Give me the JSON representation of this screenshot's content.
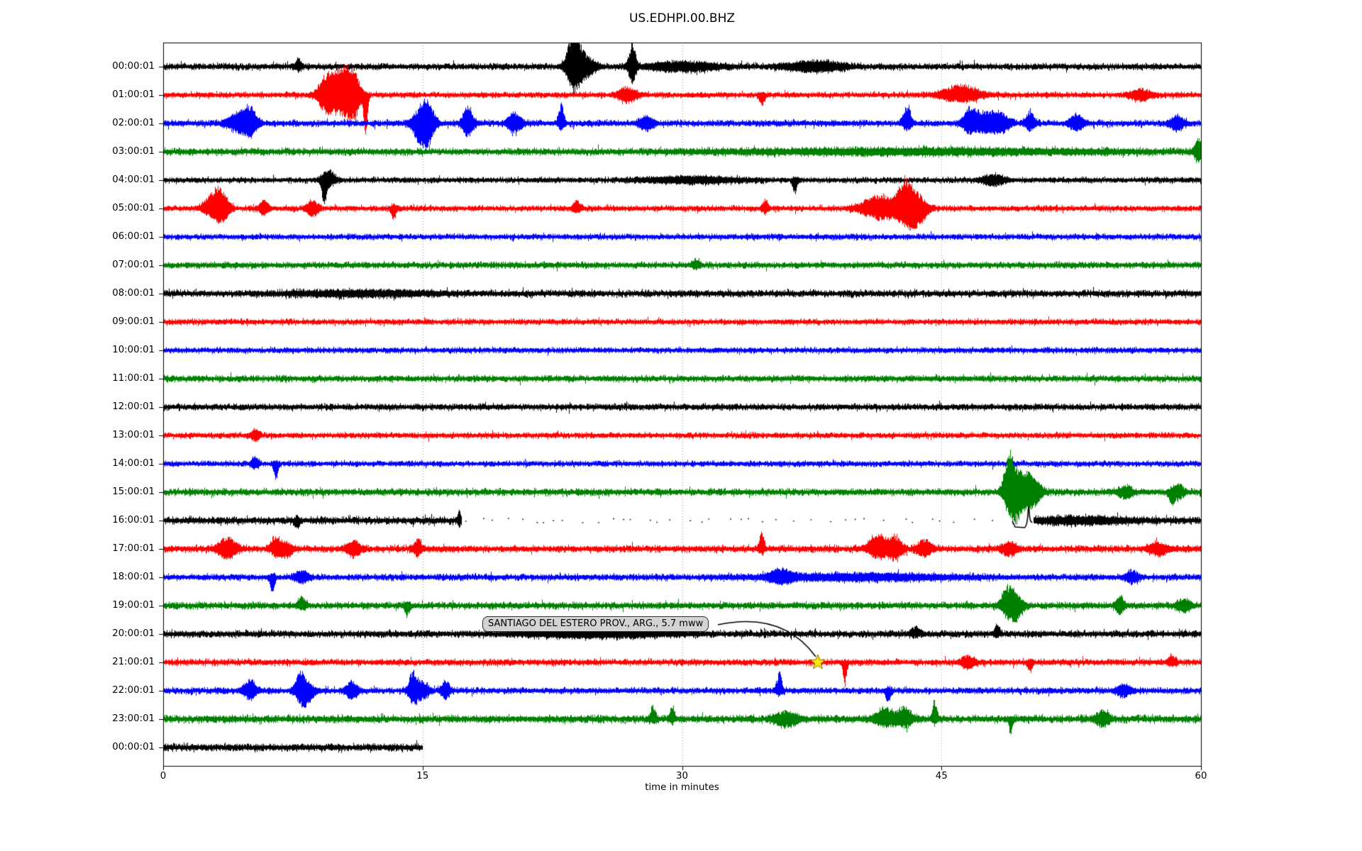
{
  "title": "US.EDHPI.00.BHZ",
  "x_axis": {
    "label": "time in minutes",
    "ticks": [
      "0",
      "15",
      "30",
      "45",
      "60"
    ],
    "range_minutes": [
      0,
      60
    ]
  },
  "annotation": {
    "text": "SANTIAGO DEL ESTERO PROV., ARG., 5.7 mww",
    "target_row": 21,
    "target_minute": 37.85,
    "marker": "star",
    "marker_fill": "#ffe600",
    "marker_edge": "#857100",
    "box_fill": "#d3d3d3",
    "box_edge": "#2e2e2e"
  },
  "colors": {
    "background": "#ffffff",
    "frame": "#000000",
    "grid": "#9a9a9a",
    "trace_cycle": [
      "#000000",
      "#ff0000",
      "#0000ff",
      "#008000"
    ]
  },
  "chart_data": {
    "type": "line",
    "subtype": "seismogram-dayplot",
    "title": "US.EDHPI.00.BHZ",
    "xlabel": "time in minutes",
    "x_ticks": [
      0,
      15,
      30,
      45,
      60
    ],
    "x_range_minutes": [
      0,
      60
    ],
    "grid": "vertical-dotted-at-15-30-45",
    "events_format": "[minute, amplitude_px, half_width_min, skew(-1=down..+1=up)]",
    "rows": [
      {
        "label": "00:00:01",
        "color": "#000000",
        "amp": 5.5,
        "segments": [
          [
            0,
            60
          ]
        ],
        "events": [
          [
            7.8,
            10,
            0.15,
            0.5
          ],
          [
            23.7,
            46,
            0.28,
            0.45
          ],
          [
            24.2,
            18,
            0.5,
            0
          ],
          [
            27.1,
            34,
            0.16,
            0.35
          ],
          [
            30.0,
            6,
            1.5,
            0
          ],
          [
            37.7,
            7,
            1.2,
            0
          ]
        ]
      },
      {
        "label": "01:00:01",
        "color": "#ff0000",
        "amp": 5,
        "segments": [
          [
            0,
            60
          ]
        ],
        "events": [
          [
            9.4,
            26,
            0.35,
            0.1
          ],
          [
            10.3,
            40,
            0.45,
            0.25
          ],
          [
            11.0,
            30,
            0.3,
            0
          ],
          [
            11.7,
            58,
            0.1,
            -1
          ],
          [
            26.8,
            10,
            0.4,
            0
          ],
          [
            34.6,
            16,
            0.12,
            -0.85
          ],
          [
            46.1,
            13,
            0.8,
            0.3
          ],
          [
            56.5,
            7,
            0.5,
            0
          ]
        ]
      },
      {
        "label": "02:00:01",
        "color": "#0000ff",
        "amp": 5.5,
        "segments": [
          [
            0,
            60
          ]
        ],
        "events": [
          [
            4.4,
            15,
            0.5,
            0.2
          ],
          [
            5.0,
            18,
            0.3,
            0.3
          ],
          [
            14.9,
            28,
            0.35,
            -0.3
          ],
          [
            15.3,
            22,
            0.3,
            0.2
          ],
          [
            17.6,
            22,
            0.25,
            0.2
          ],
          [
            20.3,
            16,
            0.3,
            0.2
          ],
          [
            23.0,
            28,
            0.13,
            0.7
          ],
          [
            27.9,
            10,
            0.3,
            0
          ],
          [
            43.0,
            28,
            0.18,
            0.7
          ],
          [
            46.6,
            20,
            0.3,
            0.4
          ],
          [
            47.5,
            15,
            0.5,
            0.2
          ],
          [
            48.4,
            12,
            0.4,
            0
          ],
          [
            50.1,
            17,
            0.22,
            0.5
          ],
          [
            52.8,
            13,
            0.3,
            0.3
          ],
          [
            58.6,
            10,
            0.3,
            0
          ]
        ]
      },
      {
        "label": "03:00:01",
        "color": "#008000",
        "amp": 6,
        "segments": [
          [
            0,
            60
          ]
        ],
        "events": [
          [
            44.0,
            3,
            8,
            0
          ],
          [
            59.85,
            15,
            0.18,
            0
          ]
        ]
      },
      {
        "label": "04:00:01",
        "color": "#000000",
        "amp": 5,
        "segments": [
          [
            0,
            60
          ]
        ],
        "events": [
          [
            9.3,
            30,
            0.13,
            -0.85
          ],
          [
            9.6,
            12,
            0.3,
            0.5
          ],
          [
            30.5,
            4,
            2,
            0
          ],
          [
            36.5,
            22,
            0.11,
            -0.9
          ],
          [
            48.0,
            7,
            0.5,
            0
          ]
        ]
      },
      {
        "label": "05:00:01",
        "color": "#ff0000",
        "amp": 5,
        "segments": [
          [
            0,
            60
          ]
        ],
        "events": [
          [
            2.9,
            23,
            0.4,
            0.45
          ],
          [
            3.4,
            16,
            0.3,
            0
          ],
          [
            5.8,
            11,
            0.2,
            0.3
          ],
          [
            8.6,
            11,
            0.25,
            0
          ],
          [
            13.3,
            13,
            0.13,
            -0.7
          ],
          [
            23.9,
            10,
            0.18,
            0.5
          ],
          [
            34.8,
            12,
            0.13,
            0.5
          ],
          [
            41.5,
            18,
            0.8,
            0.1
          ],
          [
            42.9,
            40,
            0.35,
            0.5
          ],
          [
            43.6,
            24,
            0.4,
            -0.3
          ]
        ]
      },
      {
        "label": "06:00:01",
        "color": "#0000ff",
        "amp": 5,
        "segments": [
          [
            0,
            60
          ]
        ],
        "events": []
      },
      {
        "label": "07:00:01",
        "color": "#008000",
        "amp": 5.5,
        "segments": [
          [
            0,
            60
          ]
        ],
        "events": [
          [
            30.8,
            8,
            0.18,
            0.6
          ]
        ]
      },
      {
        "label": "08:00:01",
        "color": "#000000",
        "amp": 6,
        "segments": [
          [
            0,
            60
          ]
        ],
        "events": [
          [
            11.5,
            3,
            3,
            0
          ]
        ]
      },
      {
        "label": "09:00:01",
        "color": "#ff0000",
        "amp": 5,
        "segments": [
          [
            0,
            60
          ]
        ],
        "events": []
      },
      {
        "label": "10:00:01",
        "color": "#0000ff",
        "amp": 5,
        "segments": [
          [
            0,
            60
          ]
        ],
        "events": []
      },
      {
        "label": "11:00:01",
        "color": "#008000",
        "amp": 5.5,
        "segments": [
          [
            0,
            60
          ]
        ],
        "events": []
      },
      {
        "label": "12:00:01",
        "color": "#000000",
        "amp": 5.5,
        "segments": [
          [
            0,
            60
          ]
        ],
        "events": []
      },
      {
        "label": "13:00:01",
        "color": "#ff0000",
        "amp": 5,
        "segments": [
          [
            0,
            60
          ]
        ],
        "events": [
          [
            5.3,
            7,
            0.2,
            0
          ]
        ]
      },
      {
        "label": "14:00:01",
        "color": "#0000ff",
        "amp": 5,
        "segments": [
          [
            0,
            60
          ]
        ],
        "events": [
          [
            5.3,
            9,
            0.18,
            0.3
          ],
          [
            6.5,
            21,
            0.11,
            -0.9
          ]
        ]
      },
      {
        "label": "15:00:01",
        "color": "#008000",
        "amp": 6,
        "segments": [
          [
            0,
            60
          ]
        ],
        "events": [
          [
            48.9,
            54,
            0.25,
            0.6
          ],
          [
            49.3,
            36,
            0.3,
            -0.4
          ],
          [
            49.9,
            24,
            0.3,
            0.2
          ],
          [
            50.4,
            14,
            0.3,
            0
          ],
          [
            55.6,
            8,
            0.3,
            0
          ],
          [
            58.3,
            19,
            0.13,
            -0.8
          ],
          [
            58.7,
            12,
            0.2,
            0.2
          ]
        ]
      },
      {
        "label": "16:00:01",
        "color": "#000000",
        "amp": 6.5,
        "segments": [
          [
            0,
            17.25
          ],
          [
            50.3,
            60
          ]
        ],
        "events": [
          [
            7.7,
            12,
            0.11,
            -0.8
          ],
          [
            17.1,
            13,
            0.09,
            0.5
          ],
          [
            53.0,
            4,
            2,
            0
          ]
        ],
        "gap_dots": [
          17.5,
          48.3
        ],
        "cal_pulse_minute": 50.0
      },
      {
        "label": "17:00:01",
        "color": "#ff0000",
        "amp": 6,
        "segments": [
          [
            0,
            60
          ]
        ],
        "events": [
          [
            3.7,
            15,
            0.4,
            0.1
          ],
          [
            6.5,
            17,
            0.22,
            0.5
          ],
          [
            7.1,
            11,
            0.3,
            -0.4
          ],
          [
            11.0,
            10,
            0.3,
            0
          ],
          [
            14.7,
            11,
            0.18,
            0.2
          ],
          [
            34.6,
            25,
            0.11,
            0.8
          ],
          [
            41.3,
            22,
            0.4,
            0.4
          ],
          [
            42.3,
            17,
            0.3,
            0.1
          ],
          [
            44.0,
            13,
            0.3,
            0.2
          ],
          [
            48.9,
            10,
            0.3,
            0
          ],
          [
            57.5,
            8,
            0.4,
            0
          ]
        ]
      },
      {
        "label": "18:00:01",
        "color": "#0000ff",
        "amp": 5.5,
        "segments": [
          [
            0,
            60
          ]
        ],
        "events": [
          [
            6.3,
            20,
            0.11,
            -0.9
          ],
          [
            8.0,
            8,
            0.3,
            0
          ],
          [
            35.7,
            9,
            0.5,
            0.2
          ],
          [
            40.0,
            4,
            4,
            0
          ],
          [
            56.0,
            8,
            0.3,
            0
          ]
        ]
      },
      {
        "label": "19:00:01",
        "color": "#008000",
        "amp": 6,
        "segments": [
          [
            0,
            60
          ]
        ],
        "events": [
          [
            8.0,
            12,
            0.18,
            0.6
          ],
          [
            14.1,
            12,
            0.13,
            -0.7
          ],
          [
            48.8,
            25,
            0.28,
            0.5
          ],
          [
            49.3,
            19,
            0.3,
            -0.3
          ],
          [
            55.3,
            13,
            0.18,
            0.2
          ],
          [
            59.0,
            8,
            0.3,
            0
          ]
        ]
      },
      {
        "label": "20:00:01",
        "color": "#000000",
        "amp": 6,
        "segments": [
          [
            0,
            60
          ]
        ],
        "events": [
          [
            25.0,
            4,
            3,
            0
          ],
          [
            43.5,
            9,
            0.2,
            0.7
          ],
          [
            48.2,
            13,
            0.13,
            0.8
          ]
        ]
      },
      {
        "label": "21:00:01",
        "color": "#ff0000",
        "amp": 5.5,
        "segments": [
          [
            0,
            60
          ]
        ],
        "events": [
          [
            39.4,
            34,
            0.09,
            -1
          ],
          [
            46.5,
            8,
            0.3,
            0
          ],
          [
            50.1,
            15,
            0.11,
            -0.8
          ],
          [
            58.3,
            9,
            0.18,
            0.5
          ]
        ]
      },
      {
        "label": "22:00:01",
        "color": "#0000ff",
        "amp": 5.5,
        "segments": [
          [
            0,
            60
          ]
        ],
        "events": [
          [
            5.0,
            14,
            0.3,
            0.3
          ],
          [
            7.9,
            25,
            0.22,
            0.5
          ],
          [
            8.3,
            19,
            0.3,
            -0.5
          ],
          [
            10.9,
            13,
            0.25,
            0.1
          ],
          [
            14.4,
            25,
            0.18,
            0.4
          ],
          [
            14.9,
            13,
            0.3,
            0
          ],
          [
            16.3,
            13,
            0.18,
            0.2
          ],
          [
            35.6,
            25,
            0.13,
            0.8
          ],
          [
            41.9,
            16,
            0.11,
            -0.8
          ],
          [
            55.5,
            8,
            0.3,
            0
          ]
        ]
      },
      {
        "label": "23:00:01",
        "color": "#008000",
        "amp": 6.5,
        "segments": [
          [
            0,
            60
          ]
        ],
        "events": [
          [
            28.3,
            19,
            0.11,
            0.8
          ],
          [
            29.4,
            19,
            0.11,
            0.8
          ],
          [
            36.0,
            9,
            0.5,
            0
          ],
          [
            41.8,
            13,
            0.5,
            0.3
          ],
          [
            42.9,
            15,
            0.3,
            0.4
          ],
          [
            44.6,
            27,
            0.11,
            0.8
          ],
          [
            49.0,
            23,
            0.09,
            -0.9
          ],
          [
            54.3,
            10,
            0.3,
            0
          ]
        ]
      },
      {
        "label": "00:00:01",
        "color": "#000000",
        "amp": 6.5,
        "segments": [
          [
            0,
            15
          ]
        ],
        "events": []
      }
    ]
  }
}
